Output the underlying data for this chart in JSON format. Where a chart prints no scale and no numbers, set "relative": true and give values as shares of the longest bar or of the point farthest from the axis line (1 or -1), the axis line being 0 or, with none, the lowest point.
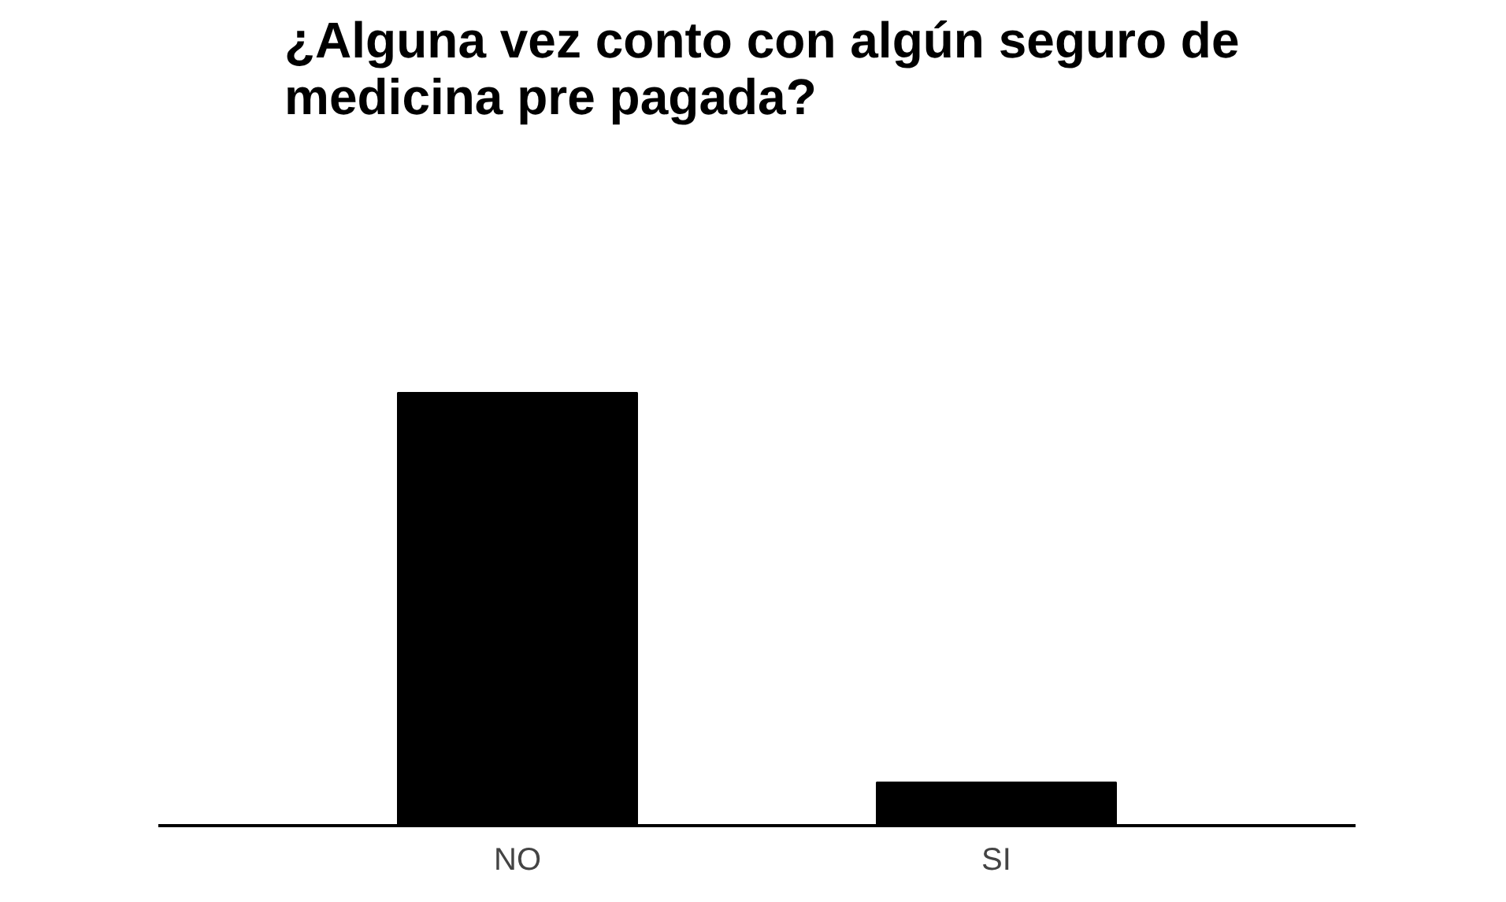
{
  "chart_data": {
    "type": "bar",
    "title": "¿Alguna vez conto con algún seguro de medicina pre pagada?",
    "categories": [
      "NO",
      "SI"
    ],
    "values": [
      1,
      0.1
    ],
    "color": "#000000",
    "relative": true,
    "grid": false
  }
}
